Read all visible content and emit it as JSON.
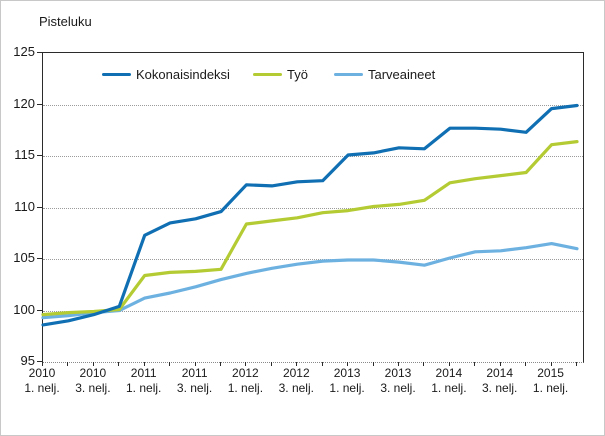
{
  "page": {
    "title_label": "Pisteluku"
  },
  "chart_data": {
    "type": "line",
    "title": "Pisteluku",
    "xlabel": "",
    "ylabel": "Pisteluku",
    "ylim": [
      95,
      125
    ],
    "yticks": [
      95,
      100,
      105,
      110,
      115,
      120,
      125
    ],
    "grid": "horizontal-dotted",
    "legend_position": "top-inside-horizontal",
    "x": [
      "2010Q1",
      "2010Q2",
      "2010Q3",
      "2010Q4",
      "2011Q1",
      "2011Q2",
      "2011Q3",
      "2011Q4",
      "2012Q1",
      "2012Q2",
      "2012Q3",
      "2012Q4",
      "2013Q1",
      "2013Q2",
      "2013Q3",
      "2013Q4",
      "2014Q1",
      "2014Q2",
      "2014Q3",
      "2014Q4",
      "2015Q1",
      "2015Q2"
    ],
    "xtick_labels": [
      {
        "year": "2010",
        "quarter": "1. nelj."
      },
      {
        "year": "2010",
        "quarter": "3. nelj."
      },
      {
        "year": "2011",
        "quarter": "1. nelj."
      },
      {
        "year": "2011",
        "quarter": "3. nelj."
      },
      {
        "year": "2012",
        "quarter": "1. nelj."
      },
      {
        "year": "2012",
        "quarter": "3. nelj."
      },
      {
        "year": "2013",
        "quarter": "1. nelj."
      },
      {
        "year": "2013",
        "quarter": "3. nelj."
      },
      {
        "year": "2014",
        "quarter": "1. nelj."
      },
      {
        "year": "2014",
        "quarter": "3. nelj."
      },
      {
        "year": "2015",
        "quarter": "1. nelj."
      }
    ],
    "series": [
      {
        "name": "Kokonaisindeksi",
        "color": "#0f6fb2",
        "values": [
          98.6,
          99.0,
          99.6,
          100.4,
          107.3,
          108.5,
          108.9,
          109.6,
          112.2,
          112.1,
          112.5,
          112.6,
          115.1,
          115.3,
          115.8,
          115.7,
          117.7,
          117.7,
          117.6,
          117.3,
          119.6,
          119.9
        ]
      },
      {
        "name": "Työ",
        "color": "#b4cb33",
        "values": [
          99.6,
          99.8,
          99.9,
          100.1,
          103.4,
          103.7,
          103.8,
          104.0,
          108.4,
          108.7,
          109.0,
          109.5,
          109.7,
          110.1,
          110.3,
          110.7,
          112.4,
          112.8,
          113.1,
          113.4,
          116.1,
          116.4
        ]
      },
      {
        "name": "Tarveaineet",
        "color": "#6db1e1",
        "values": [
          99.3,
          99.5,
          99.8,
          100.0,
          101.2,
          101.7,
          102.3,
          103.0,
          103.6,
          104.1,
          104.5,
          104.8,
          104.9,
          104.9,
          104.7,
          104.4,
          105.1,
          105.7,
          105.8,
          106.1,
          106.5,
          106.0
        ]
      }
    ]
  }
}
